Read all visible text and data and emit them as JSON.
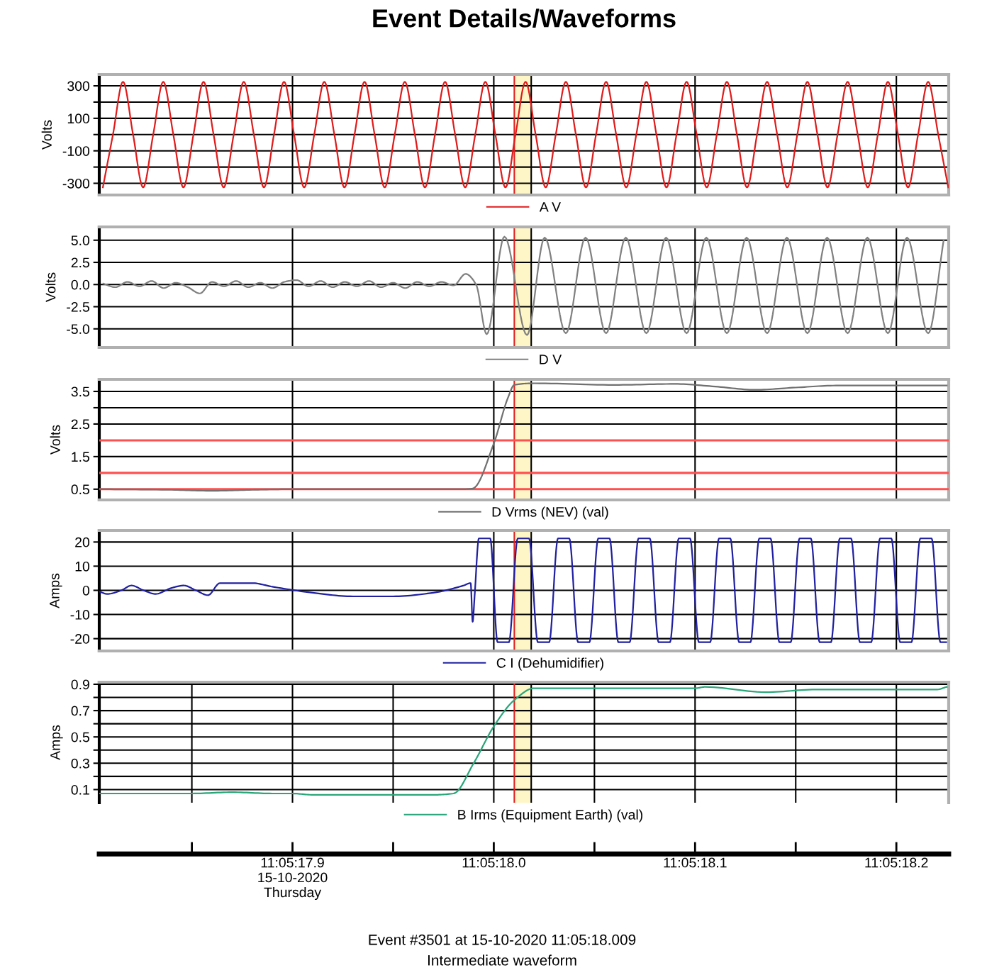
{
  "chart_data": [
    {
      "type": "line",
      "title": "Event Details/Waveforms",
      "ylabel": "Volts",
      "grid": true,
      "legend": "bottom",
      "tick_labels": "y",
      "xlim": [
        "2020-10-15T11:05:17.804",
        "2020-10-15T11:05:18.226"
      ],
      "ylim": [
        -372,
        370
      ],
      "xticks": [
        {
          "value": "2020-10-15T11:05:17.9",
          "label": null
        },
        {
          "value": "2020-10-15T11:05:18.0",
          "label": null
        },
        {
          "value": "2020-10-15T11:05:18.1",
          "label": null
        },
        {
          "value": "2020-10-15T11:05:18.2",
          "label": null
        }
      ],
      "yticks": [
        300,
        {
          "value": 200,
          "label": null
        },
        100,
        {
          "value": 0,
          "label": null
        },
        -100,
        {
          "value": -200,
          "label": null
        },
        -300
      ],
      "ref_lines": [
        {
          "axis": "x",
          "value": "2020-10-15T11:05:18.0102",
          "color": "#e02020"
        },
        {
          "axis": "x",
          "value": "2020-10-15T11:05:18.0186",
          "color": "#000000"
        }
      ],
      "bands": [
        {
          "axis": "x",
          "from": "2020-10-15T11:05:18.0102",
          "to": "2020-10-15T11:05:18.0186",
          "color": "#fff6c8"
        }
      ],
      "series": [
        {
          "name": "A V",
          "color": "#e01b1b",
          "x": [
            "2020-10-15T11:05:17.8058",
            "2020-10-15T11:05:17.8108",
            "2020-10-15T11:05:17.8158",
            "2020-10-15T11:05:17.8208",
            "2020-10-15T11:05:17.8258",
            "2020-10-15T11:05:17.8308",
            "2020-10-15T11:05:17.8358",
            "2020-10-15T11:05:17.8408",
            "2020-10-15T11:05:17.8458",
            "2020-10-15T11:05:17.8508",
            "2020-10-15T11:05:17.8558",
            "2020-10-15T11:05:17.8608",
            "2020-10-15T11:05:17.8658",
            "2020-10-15T11:05:17.8708",
            "2020-10-15T11:05:17.8758",
            "2020-10-15T11:05:17.8808",
            "2020-10-15T11:05:17.8858",
            "2020-10-15T11:05:17.8908",
            "2020-10-15T11:05:17.8958",
            "2020-10-15T11:05:17.9008",
            "2020-10-15T11:05:17.9058",
            "2020-10-15T11:05:17.9108",
            "2020-10-15T11:05:17.9158",
            "2020-10-15T11:05:17.9208",
            "2020-10-15T11:05:17.9258",
            "2020-10-15T11:05:17.9308",
            "2020-10-15T11:05:17.9358",
            "2020-10-15T11:05:17.9408",
            "2020-10-15T11:05:17.9458",
            "2020-10-15T11:05:17.9508",
            "2020-10-15T11:05:17.9558",
            "2020-10-15T11:05:17.9608",
            "2020-10-15T11:05:17.9658",
            "2020-10-15T11:05:17.9708",
            "2020-10-15T11:05:17.9758",
            "2020-10-15T11:05:17.9808",
            "2020-10-15T11:05:17.9858",
            "2020-10-15T11:05:17.9908",
            "2020-10-15T11:05:17.9958",
            "2020-10-15T11:05:18.0008",
            "2020-10-15T11:05:18.0058",
            "2020-10-15T11:05:18.0108",
            "2020-10-15T11:05:18.0158",
            "2020-10-15T11:05:18.0208",
            "2020-10-15T11:05:18.0258",
            "2020-10-15T11:05:18.0308",
            "2020-10-15T11:05:18.0358",
            "2020-10-15T11:05:18.0408",
            "2020-10-15T11:05:18.0458",
            "2020-10-15T11:05:18.0508",
            "2020-10-15T11:05:18.0558",
            "2020-10-15T11:05:18.0608",
            "2020-10-15T11:05:18.0658",
            "2020-10-15T11:05:18.0708",
            "2020-10-15T11:05:18.0758",
            "2020-10-15T11:05:18.0808",
            "2020-10-15T11:05:18.0858",
            "2020-10-15T11:05:18.0908",
            "2020-10-15T11:05:18.0958",
            "2020-10-15T11:05:18.1008",
            "2020-10-15T11:05:18.1058",
            "2020-10-15T11:05:18.1108",
            "2020-10-15T11:05:18.1158",
            "2020-10-15T11:05:18.1208",
            "2020-10-15T11:05:18.1258",
            "2020-10-15T11:05:18.1308",
            "2020-10-15T11:05:18.1358",
            "2020-10-15T11:05:18.1408",
            "2020-10-15T11:05:18.1458",
            "2020-10-15T11:05:18.1508",
            "2020-10-15T11:05:18.1558",
            "2020-10-15T11:05:18.1608",
            "2020-10-15T11:05:18.1658",
            "2020-10-15T11:05:18.1708",
            "2020-10-15T11:05:18.1758",
            "2020-10-15T11:05:18.1808",
            "2020-10-15T11:05:18.1858",
            "2020-10-15T11:05:18.1908",
            "2020-10-15T11:05:18.1958",
            "2020-10-15T11:05:18.2008",
            "2020-10-15T11:05:18.2058",
            "2020-10-15T11:05:18.2108",
            "2020-10-15T11:05:18.2158",
            "2020-10-15T11:05:18.2208",
            "2020-10-15T11:05:18.2258"
          ],
          "values": [
            -325,
            0,
            325,
            0,
            -325,
            0,
            325,
            0,
            -325,
            0,
            325,
            0,
            -325,
            0,
            325,
            0,
            -325,
            0,
            325,
            0,
            -325,
            0,
            325,
            0,
            -325,
            0,
            325,
            0,
            -325,
            0,
            325,
            0,
            -325,
            0,
            325,
            0,
            -325,
            0,
            325,
            0,
            -325,
            0,
            325,
            0,
            -325,
            0,
            325,
            0,
            -325,
            0,
            325,
            0,
            -325,
            0,
            325,
            0,
            -325,
            0,
            325,
            0,
            -325,
            0,
            325,
            0,
            -325,
            0,
            325,
            0,
            -325,
            0,
            325,
            0,
            -325,
            0,
            325,
            0,
            -325,
            0,
            325,
            0,
            -325,
            0,
            325,
            0,
            -325
          ]
        }
      ]
    },
    {
      "type": "line",
      "ylabel": "Volts",
      "grid": true,
      "legend": "bottom",
      "tick_labels": "y",
      "xlim": [
        "2020-10-15T11:05:17.804",
        "2020-10-15T11:05:18.226"
      ],
      "ylim": [
        -7.1,
        6.5
      ],
      "xticks": [
        {
          "value": "2020-10-15T11:05:17.9",
          "label": null
        },
        {
          "value": "2020-10-15T11:05:18.0",
          "label": null
        },
        {
          "value": "2020-10-15T11:05:18.1",
          "label": null
        },
        {
          "value": "2020-10-15T11:05:18.2",
          "label": null
        }
      ],
      "yticks": [
        {
          "value": 5.0,
          "label": "5.0"
        },
        2.5,
        {
          "value": 0.0,
          "label": "0.0"
        },
        -2.5,
        {
          "value": -5.0,
          "label": "-5.0"
        }
      ],
      "ref_lines": [
        {
          "axis": "x",
          "value": "2020-10-15T11:05:18.0102",
          "color": "#e02020"
        },
        {
          "axis": "x",
          "value": "2020-10-15T11:05:18.0186",
          "color": "#000000"
        }
      ],
      "bands": [
        {
          "axis": "x",
          "from": "2020-10-15T11:05:18.0102",
          "to": "2020-10-15T11:05:18.0186",
          "color": "#fff6c8"
        }
      ],
      "series": [
        {
          "name": "D V",
          "color": "#808080",
          "x": [
            "2020-10-15T11:05:17.806",
            "2020-10-15T11:05:17.812",
            "2020-10-15T11:05:17.818",
            "2020-10-15T11:05:17.824",
            "2020-10-15T11:05:17.830",
            "2020-10-15T11:05:17.836",
            "2020-10-15T11:05:17.842",
            "2020-10-15T11:05:17.848",
            "2020-10-15T11:05:17.854",
            "2020-10-15T11:05:17.860",
            "2020-10-15T11:05:17.866",
            "2020-10-15T11:05:17.872",
            "2020-10-15T11:05:17.878",
            "2020-10-15T11:05:17.884",
            "2020-10-15T11:05:17.890",
            "2020-10-15T11:05:17.896",
            "2020-10-15T11:05:17.902",
            "2020-10-15T11:05:17.908",
            "2020-10-15T11:05:17.914",
            "2020-10-15T11:05:17.920",
            "2020-10-15T11:05:17.926",
            "2020-10-15T11:05:17.932",
            "2020-10-15T11:05:17.938",
            "2020-10-15T11:05:17.944",
            "2020-10-15T11:05:17.950",
            "2020-10-15T11:05:17.956",
            "2020-10-15T11:05:17.962",
            "2020-10-15T11:05:17.968",
            "2020-10-15T11:05:17.974",
            "2020-10-15T11:05:17.980",
            "2020-10-15T11:05:17.986",
            "2020-10-15T11:05:17.9912",
            "2020-10-15T11:05:17.9965",
            "2020-10-15T11:05:18.0053",
            "2020-10-15T11:05:18.0165",
            "2020-10-15T11:05:18.0253",
            "2020-10-15T11:05:18.0358",
            "2020-10-15T11:05:18.0456",
            "2020-10-15T11:05:18.0558",
            "2020-10-15T11:05:18.0656",
            "2020-10-15T11:05:18.0758",
            "2020-10-15T11:05:18.0856",
            "2020-10-15T11:05:18.0958",
            "2020-10-15T11:05:18.1056",
            "2020-10-15T11:05:18.1158",
            "2020-10-15T11:05:18.1256",
            "2020-10-15T11:05:18.1358",
            "2020-10-15T11:05:18.1456",
            "2020-10-15T11:05:18.1558",
            "2020-10-15T11:05:18.1656",
            "2020-10-15T11:05:18.1758",
            "2020-10-15T11:05:18.1856",
            "2020-10-15T11:05:18.1958",
            "2020-10-15T11:05:18.2053",
            "2020-10-15T11:05:18.2158",
            "2020-10-15T11:05:18.2235"
          ],
          "values": [
            0.1,
            -0.3,
            0.3,
            -0.2,
            0.4,
            -0.4,
            0.2,
            -0.3,
            -1.0,
            0.3,
            -0.2,
            0.4,
            -0.3,
            0.2,
            -0.4,
            0.3,
            0.5,
            -0.2,
            0.4,
            -0.3,
            0.3,
            -0.2,
            0.4,
            -0.3,
            0.2,
            -0.4,
            0.3,
            -0.2,
            0.3,
            -0.1,
            1.2,
            0.0,
            -5.6,
            5.4,
            -5.7,
            5.3,
            -5.5,
            5.3,
            -5.5,
            5.3,
            -5.5,
            5.3,
            -5.5,
            5.3,
            -5.5,
            5.3,
            -5.5,
            5.3,
            -5.5,
            5.3,
            -5.5,
            5.3,
            -5.5,
            5.3,
            -5.5,
            5.0
          ]
        }
      ]
    },
    {
      "type": "line",
      "ylabel": "Volts",
      "grid": true,
      "legend": "bottom",
      "tick_labels": "y",
      "xlim": [
        "2020-10-15T11:05:17.804",
        "2020-10-15T11:05:18.226"
      ],
      "ylim": [
        0.17,
        3.87
      ],
      "xticks": [
        {
          "value": "2020-10-15T11:05:17.9",
          "label": null
        },
        {
          "value": "2020-10-15T11:05:18.0",
          "label": null
        },
        {
          "value": "2020-10-15T11:05:18.1",
          "label": null
        },
        {
          "value": "2020-10-15T11:05:18.2",
          "label": null
        }
      ],
      "yticks": [
        3.5,
        {
          "value": 3.0,
          "label": null
        },
        2.5,
        1.5,
        0.5
      ],
      "ref_lines": [
        {
          "axis": "x",
          "value": "2020-10-15T11:05:18.0102",
          "color": "#e02020"
        },
        {
          "axis": "x",
          "value": "2020-10-15T11:05:18.0186",
          "color": "#000000"
        },
        {
          "axis": "y",
          "value": 2.0,
          "color": "#ff5050"
        },
        {
          "axis": "y",
          "value": 1.0,
          "color": "#ff5050"
        },
        {
          "axis": "y",
          "value": 0.5,
          "color": "#ff5050"
        }
      ],
      "bands": [
        {
          "axis": "x",
          "from": "2020-10-15T11:05:18.0102",
          "to": "2020-10-15T11:05:18.0186",
          "color": "#fff6c8"
        }
      ],
      "series": [
        {
          "name": "D Vrms (NEV) (val)",
          "color": "#707070",
          "x": [
            "2020-10-15T11:05:17.804",
            "2020-10-15T11:05:17.84",
            "2020-10-15T11:05:17.86",
            "2020-10-15T11:05:17.88",
            "2020-10-15T11:05:17.9",
            "2020-10-15T11:05:17.95",
            "2020-10-15T11:05:17.985",
            "2020-10-15T11:05:17.9895",
            "2020-10-15T11:05:18.0",
            "2020-10-15T11:05:18.007",
            "2020-10-15T11:05:18.0102",
            "2020-10-15T11:05:18.02",
            "2020-10-15T11:05:18.06",
            "2020-10-15T11:05:18.09",
            "2020-10-15T11:05:18.11",
            "2020-10-15T11:05:18.13",
            "2020-10-15T11:05:18.15",
            "2020-10-15T11:05:18.17",
            "2020-10-15T11:05:18.2",
            "2020-10-15T11:05:18.225"
          ],
          "values": [
            0.5,
            0.48,
            0.45,
            0.48,
            0.5,
            0.5,
            0.5,
            0.52,
            1.9,
            3.3,
            3.7,
            3.75,
            3.7,
            3.73,
            3.65,
            3.55,
            3.62,
            3.68,
            3.68,
            3.68
          ]
        }
      ]
    },
    {
      "type": "line",
      "ylabel": "Amps",
      "grid": true,
      "legend": "bottom",
      "tick_labels": "y",
      "xlim": [
        "2020-10-15T11:05:17.804",
        "2020-10-15T11:05:18.226"
      ],
      "ylim": [
        -25.1,
        24.8
      ],
      "xticks": [
        {
          "value": "2020-10-15T11:05:17.9",
          "label": null
        },
        {
          "value": "2020-10-15T11:05:18.0",
          "label": null
        },
        {
          "value": "2020-10-15T11:05:18.1",
          "label": null
        },
        {
          "value": "2020-10-15T11:05:18.2",
          "label": null
        }
      ],
      "yticks": [
        20,
        10,
        0,
        -10,
        -20
      ],
      "ref_lines": [
        {
          "axis": "x",
          "value": "2020-10-15T11:05:18.0102",
          "color": "#e02020"
        },
        {
          "axis": "x",
          "value": "2020-10-15T11:05:18.0186",
          "color": "#000000"
        }
      ],
      "bands": [
        {
          "axis": "x",
          "from": "2020-10-15T11:05:18.0102",
          "to": "2020-10-15T11:05:18.0186",
          "color": "#fff6c8"
        }
      ],
      "series": [
        {
          "name": "C I (Dehumidifier)",
          "color": "#2020a0",
          "x": [
            "2020-10-15T11:05:17.804",
            "2020-10-15T11:05:17.808",
            "2020-10-15T11:05:17.815",
            "2020-10-15T11:05:17.82",
            "2020-10-15T11:05:17.826",
            "2020-10-15T11:05:17.832",
            "2020-10-15T11:05:17.84",
            "2020-10-15T11:05:17.846",
            "2020-10-15T11:05:17.852",
            "2020-10-15T11:05:17.858",
            "2020-10-15T11:05:17.864",
            "2020-10-15T11:05:17.88",
            "2020-10-15T11:05:17.89",
            "2020-10-15T11:05:17.91",
            "2020-10-15T11:05:17.93",
            "2020-10-15T11:05:17.95",
            "2020-10-15T11:05:17.97",
            "2020-10-15T11:05:17.985",
            "2020-10-15T11:05:17.9885",
            "2020-10-15T11:05:17.9895",
            "2020-10-15T11:05:17.9905",
            "2020-10-15T11:05:17.9926",
            "2020-10-15T11:05:17.9982",
            "2020-10-15T11:05:18.0019",
            "2020-10-15T11:05:18.0075",
            "2020-10-15T11:05:18.0119",
            "2020-10-15T11:05:18.0175",
            "2020-10-15T11:05:18.0219",
            "2020-10-15T11:05:18.0275",
            "2020-10-15T11:05:18.0319",
            "2020-10-15T11:05:18.0375",
            "2020-10-15T11:05:18.0419",
            "2020-10-15T11:05:18.0475",
            "2020-10-15T11:05:18.0519",
            "2020-10-15T11:05:18.0575",
            "2020-10-15T11:05:18.0619",
            "2020-10-15T11:05:18.0675",
            "2020-10-15T11:05:18.0719",
            "2020-10-15T11:05:18.0775",
            "2020-10-15T11:05:18.0819",
            "2020-10-15T11:05:18.0875",
            "2020-10-15T11:05:18.0919",
            "2020-10-15T11:05:18.0975",
            "2020-10-15T11:05:18.1019",
            "2020-10-15T11:05:18.1075",
            "2020-10-15T11:05:18.1119",
            "2020-10-15T11:05:18.1175",
            "2020-10-15T11:05:18.1219",
            "2020-10-15T11:05:18.1275",
            "2020-10-15T11:05:18.1319",
            "2020-10-15T11:05:18.1375",
            "2020-10-15T11:05:18.1419",
            "2020-10-15T11:05:18.1475",
            "2020-10-15T11:05:18.1519",
            "2020-10-15T11:05:18.1575",
            "2020-10-15T11:05:18.1619",
            "2020-10-15T11:05:18.1675",
            "2020-10-15T11:05:18.1719",
            "2020-10-15T11:05:18.1775",
            "2020-10-15T11:05:18.1819",
            "2020-10-15T11:05:18.1875",
            "2020-10-15T11:05:18.1919",
            "2020-10-15T11:05:18.1975",
            "2020-10-15T11:05:18.2019",
            "2020-10-15T11:05:18.2075",
            "2020-10-15T11:05:18.2119",
            "2020-10-15T11:05:18.2175",
            "2020-10-15T11:05:18.2219",
            "2020-10-15T11:05:18.2248"
          ],
          "values": [
            -0.5,
            -1.5,
            0,
            2,
            0,
            -1.5,
            1,
            2,
            0,
            -2,
            3,
            3,
            1.5,
            -1,
            -2.5,
            -2.5,
            -1,
            2,
            3,
            -13,
            -2,
            21.5,
            21.5,
            -21.5,
            -21.5,
            21.5,
            21.5,
            -21.5,
            -21.5,
            21.5,
            21.5,
            -21.5,
            -21.5,
            21.5,
            21.5,
            -21.5,
            -21.5,
            21.5,
            21.5,
            -21.5,
            -21.5,
            21.5,
            21.5,
            -21.5,
            -21.5,
            21.5,
            21.5,
            -21.5,
            -21.5,
            21.5,
            21.5,
            -21.5,
            -21.5,
            21.5,
            21.5,
            -21.5,
            -21.5,
            21.5,
            21.5,
            -21.5,
            -21.5,
            21.5,
            21.5,
            -21.5,
            -21.5,
            21.5,
            21.5,
            -21.5,
            -21.5
          ]
        }
      ]
    },
    {
      "type": "line",
      "ylabel": "Amps",
      "grid": true,
      "legend": "bottom",
      "xlim": [
        "2020-10-15T11:05:17.804",
        "2020-10-15T11:05:18.226"
      ],
      "ylim": [
        0.0,
        0.916
      ],
      "xticks": [
        {
          "value": "2020-10-15T11:05:17.85",
          "label": null
        },
        {
          "value": "2020-10-15T11:05:17.9",
          "label": "11:05:17.9\n15-10-2020\nThursday"
        },
        {
          "value": "2020-10-15T11:05:17.95",
          "label": null
        },
        {
          "value": "2020-10-15T11:05:18.0",
          "label": "11:05:18.0"
        },
        {
          "value": "2020-10-15T11:05:18.05",
          "label": null
        },
        {
          "value": "2020-10-15T11:05:18.1",
          "label": "11:05:18.1"
        },
        {
          "value": "2020-10-15T11:05:18.15",
          "label": null
        },
        {
          "value": "2020-10-15T11:05:18.2",
          "label": "11:05:18.2"
        }
      ],
      "yticks": [
        0.9,
        {
          "value": 0.8,
          "label": null
        },
        0.7,
        {
          "value": 0.6,
          "label": null
        },
        0.5,
        {
          "value": 0.4,
          "label": null
        },
        0.3,
        {
          "value": 0.2,
          "label": null
        },
        0.1
      ],
      "ref_lines": [
        {
          "axis": "x",
          "value": "2020-10-15T11:05:18.0102",
          "color": "#e02020"
        },
        {
          "axis": "x",
          "value": "2020-10-15T11:05:18.0186",
          "color": "#000000"
        }
      ],
      "bands": [
        {
          "axis": "x",
          "from": "2020-10-15T11:05:18.0102",
          "to": "2020-10-15T11:05:18.0186",
          "color": "#fff6c8"
        }
      ],
      "annotations": [
        "Event #3501 at 15-10-2020 11:05:18.009",
        "Intermediate waveform"
      ],
      "series": [
        {
          "name": "B Irms (Equipment Earth) (val)",
          "color": "#2aa57a",
          "x": [
            "2020-10-15T11:05:17.804",
            "2020-10-15T11:05:17.85",
            "2020-10-15T11:05:17.87",
            "2020-10-15T11:05:17.89",
            "2020-10-15T11:05:17.9",
            "2020-10-15T11:05:17.91",
            "2020-10-15T11:05:17.97",
            "2020-10-15T11:05:17.98",
            "2020-10-15T11:05:17.99",
            "2020-10-15T11:05:18.0",
            "2020-10-15T11:05:18.0102",
            "2020-10-15T11:05:18.02",
            "2020-10-15T11:05:18.1",
            "2020-10-15T11:05:18.105",
            "2020-10-15T11:05:18.135",
            "2020-10-15T11:05:18.16",
            "2020-10-15T11:05:18.22",
            "2020-10-15T11:05:18.225"
          ],
          "values": [
            0.07,
            0.07,
            0.08,
            0.07,
            0.07,
            0.06,
            0.06,
            0.07,
            0.3,
            0.58,
            0.78,
            0.87,
            0.87,
            0.88,
            0.84,
            0.86,
            0.86,
            0.88
          ]
        }
      ]
    }
  ]
}
